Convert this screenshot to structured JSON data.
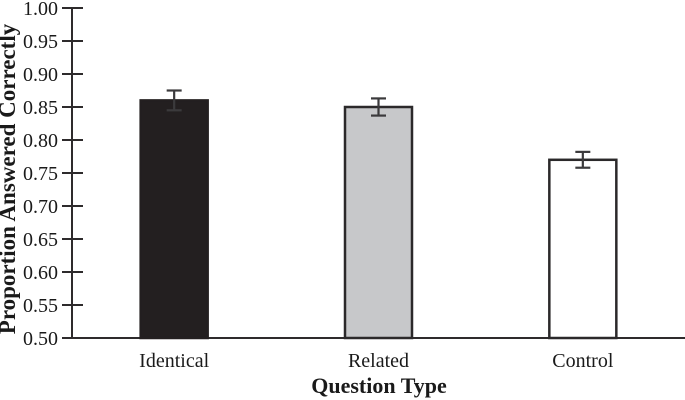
{
  "figure": {
    "background": "#ffffff"
  },
  "chart_data": {
    "type": "bar",
    "title": "",
    "categories": [
      "Identical",
      "Related",
      "Control"
    ],
    "values": [
      0.86,
      0.85,
      0.77
    ],
    "errors": [
      0.015,
      0.013,
      0.012
    ],
    "xlabel": "Question Type",
    "ylabel": "Proportion Answered Correctly",
    "ylim": [
      0.5,
      1.0
    ],
    "ytick_step": 0.05,
    "ytick_labels": [
      "0.50",
      "0.55",
      "0.60",
      "0.65",
      "0.70",
      "0.75",
      "0.80",
      "0.85",
      "0.90",
      "0.95",
      "1.00"
    ],
    "grid": false,
    "legend": null,
    "colors": {
      "bar_fills": [
        "#231f20",
        "#c7c8ca",
        "#ffffff"
      ],
      "bar_strokes": [
        "#231f20",
        "#2b292a",
        "#2b292a"
      ],
      "error_bar": "#3b3a3c",
      "axis": "#2e2b2c",
      "text": "#1a1a1a"
    }
  }
}
